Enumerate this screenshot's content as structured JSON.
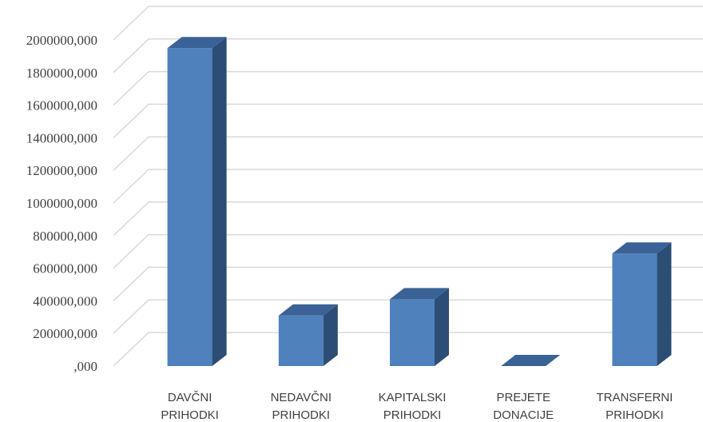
{
  "chart_data": {
    "type": "bar",
    "style": "3d-column",
    "categories": [
      [
        "DAVČNI",
        "PRIHODKI"
      ],
      [
        "NEDAVČNI",
        "PRIHODKI"
      ],
      [
        "KAPITALSKI",
        "PRIHODKI"
      ],
      [
        "PREJETE",
        "DONACIJE"
      ],
      [
        "TRANSFERNI",
        "PRIHODKI"
      ]
    ],
    "values": [
      1950000,
      310000,
      410000,
      0,
      690000
    ],
    "ylim": [
      0,
      2000000
    ],
    "yticks": [
      0,
      200000,
      400000,
      600000,
      800000,
      1000000,
      1200000,
      1400000,
      1600000,
      1800000,
      2000000
    ],
    "ytick_labels": [
      ",000",
      "200000,000",
      "400000,000",
      "600000,000",
      "800000,000",
      "1000000,000",
      "1200000,000",
      "1400000,000",
      "1600000,000",
      "1800000,000",
      "2000000,000"
    ],
    "grid": true,
    "legend": "none",
    "colors": {
      "front": "#4f81bd",
      "side": "#2c4d75",
      "top": "#3a6296",
      "grid": "#d9d9d9"
    }
  }
}
